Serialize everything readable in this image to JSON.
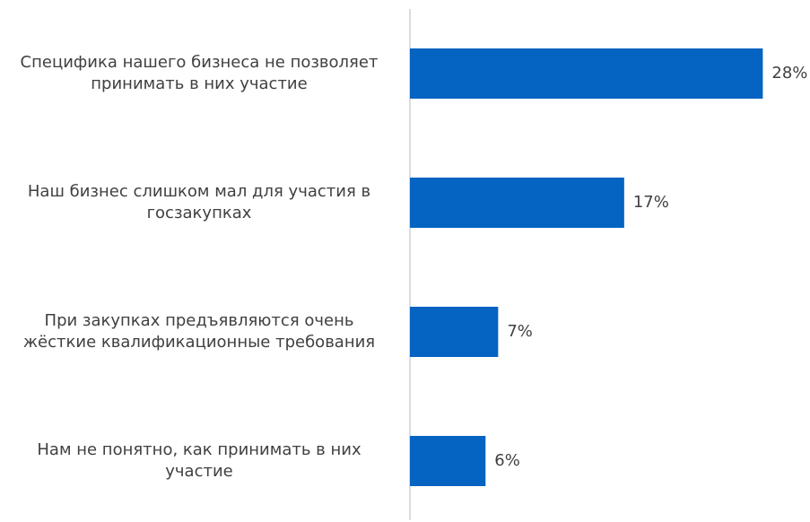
{
  "chart_data": {
    "type": "barh",
    "categories": [
      "Специфика нашего бизнеса не позволяет принимать в них участие",
      "Наш бизнес слишком мал для участия в госзакупках",
      "При закупках предъявляются очень жёсткие квалификационные требования",
      "Нам не понятно, как принимать в них участие"
    ],
    "values": [
      28,
      17,
      7,
      6
    ],
    "value_labels": [
      "28%",
      "17%",
      "7%",
      "6%"
    ],
    "color": "#0563c1"
  }
}
